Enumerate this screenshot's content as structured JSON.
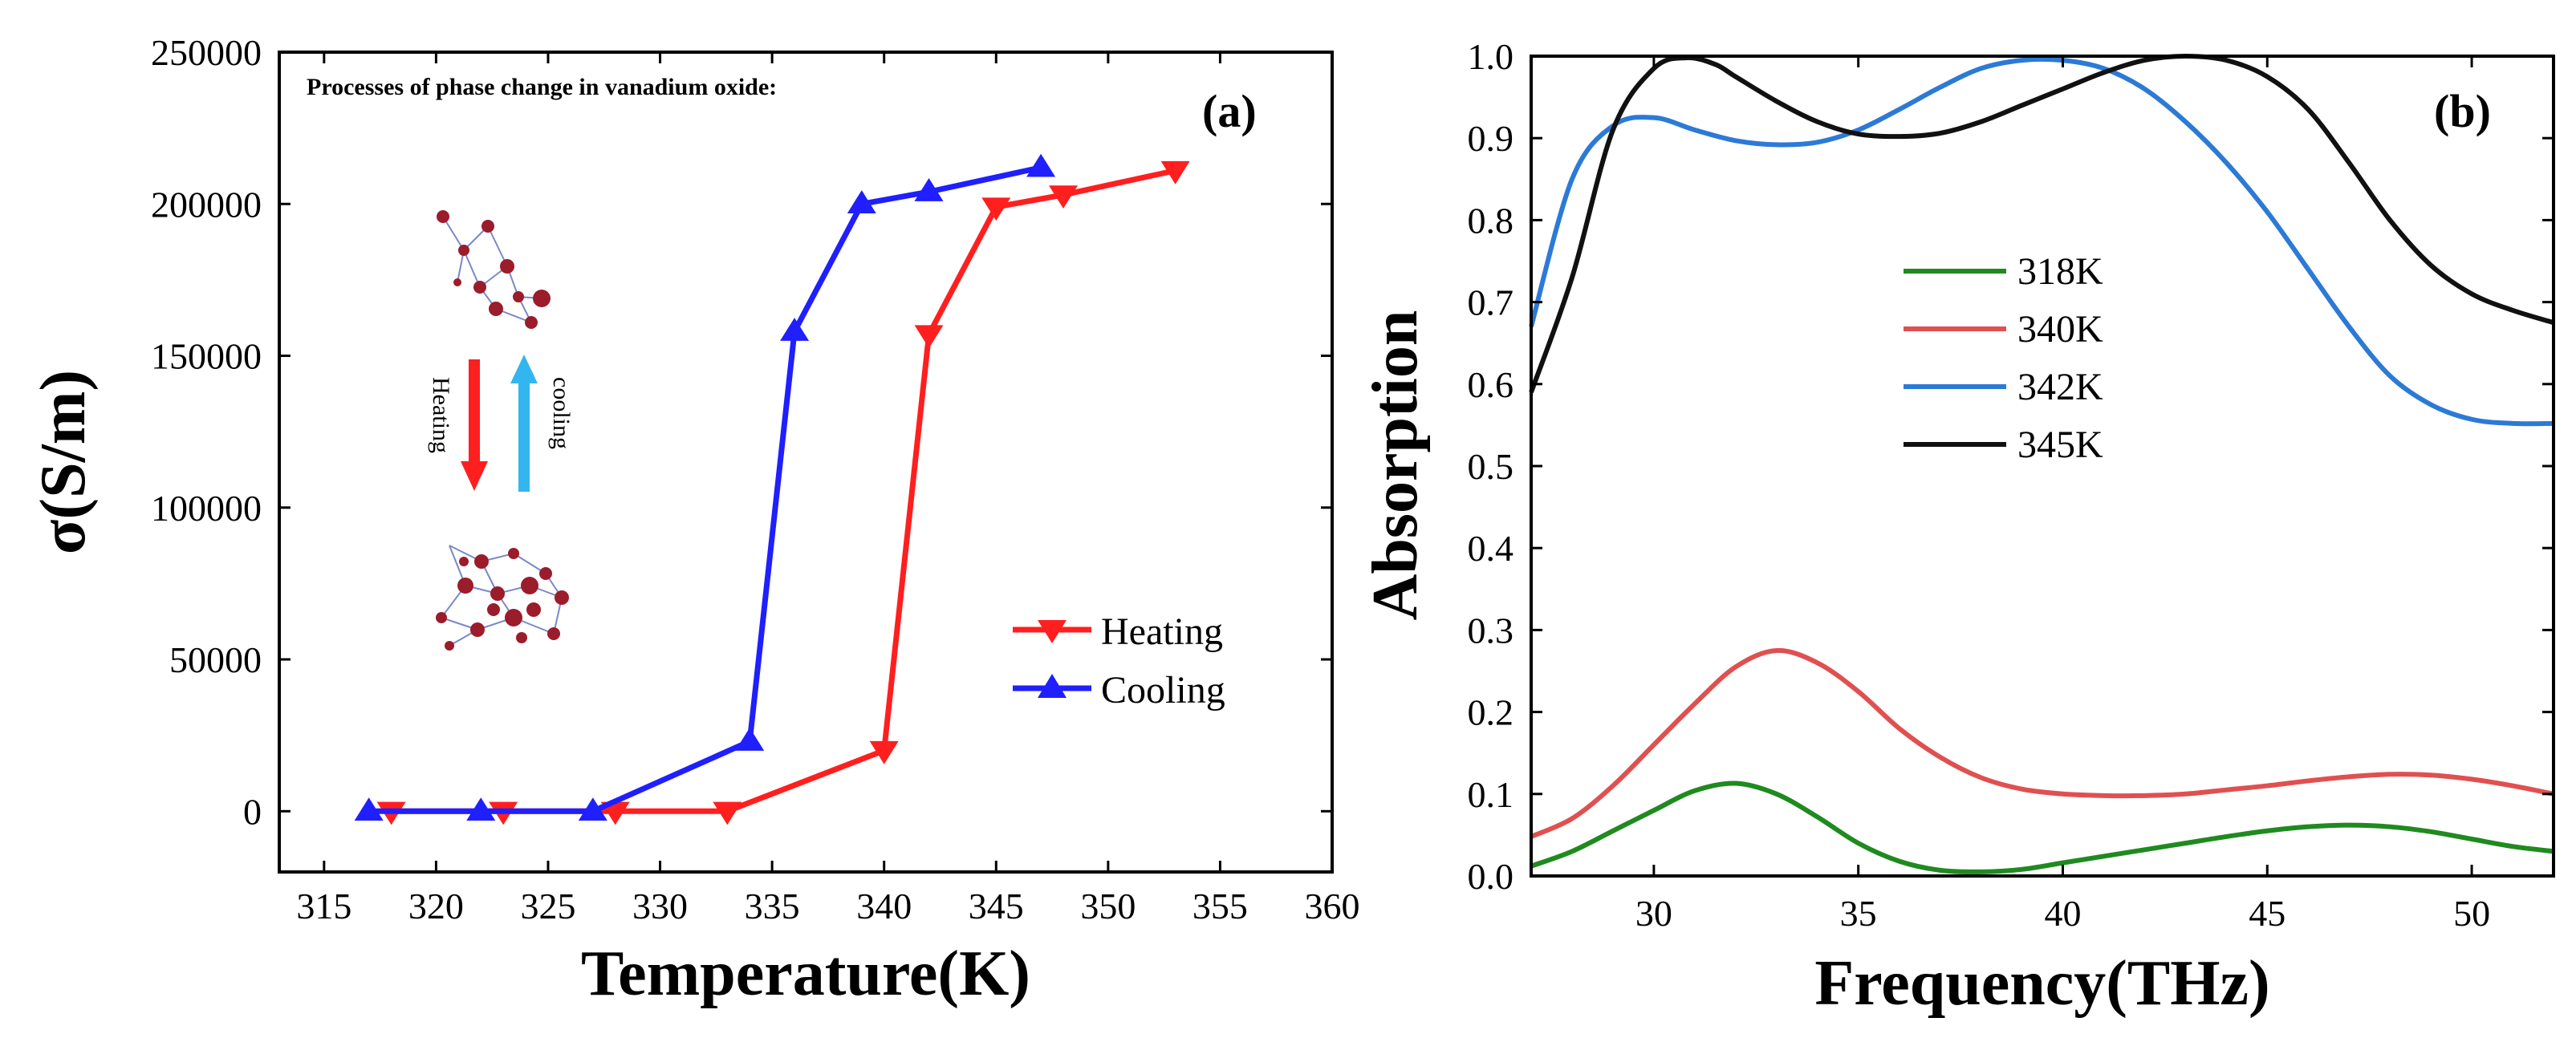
{
  "chart_data": [
    {
      "type": "line",
      "panel_tag": "(a)",
      "title": "Processes of phase change in vanadium oxide:",
      "xlabel": "Temperature(K)",
      "ylabel": "σ(S/m)",
      "xlim": [
        313,
        360
      ],
      "ylim": [
        -20000,
        250000
      ],
      "xticks": [
        "315",
        "320",
        "325",
        "330",
        "335",
        "340",
        "345",
        "350",
        "355",
        "360"
      ],
      "yticks": [
        "0",
        "50000",
        "100000",
        "150000",
        "200000",
        "250000"
      ],
      "inset": {
        "heating_label": "Heating",
        "cooling_label": "cooling"
      },
      "series": [
        {
          "name": "Heating",
          "color": "#ff1f1f",
          "marker": "triangle-down",
          "x": [
            318,
            323,
            328,
            333,
            340,
            342,
            345,
            348,
            353
          ],
          "y": [
            0,
            0,
            0,
            0,
            20000,
            157000,
            199000,
            203000,
            211000
          ]
        },
        {
          "name": "Cooling",
          "color": "#1f1fff",
          "marker": "triangle-up",
          "x": [
            317,
            322,
            327,
            334,
            336,
            339,
            342,
            347
          ],
          "y": [
            0,
            0,
            0,
            23000,
            158000,
            200000,
            204000,
            212000
          ]
        }
      ]
    },
    {
      "type": "line",
      "panel_tag": "(b)",
      "xlabel": "Frequency(THz)",
      "ylabel": "Absorption",
      "xlim": [
        27,
        52
      ],
      "ylim": [
        0,
        1.0
      ],
      "xticks": [
        "30",
        "35",
        "40",
        "45",
        "50"
      ],
      "yticks": [
        "0.0",
        "0.1",
        "0.2",
        "0.3",
        "0.4",
        "0.5",
        "0.6",
        "0.7",
        "0.8",
        "0.9",
        "1.0"
      ],
      "series": [
        {
          "name": "318K",
          "color": "#1f8a1f",
          "x": [
            27,
            28,
            29,
            30,
            31,
            32,
            33,
            34,
            35,
            36,
            37,
            38,
            39,
            40,
            41,
            42,
            43,
            44,
            45,
            46,
            47,
            48,
            49,
            50,
            51,
            52
          ],
          "y": [
            0.012,
            0.03,
            0.055,
            0.08,
            0.104,
            0.113,
            0.1,
            0.072,
            0.04,
            0.018,
            0.007,
            0.005,
            0.008,
            0.016,
            0.024,
            0.032,
            0.04,
            0.048,
            0.055,
            0.06,
            0.062,
            0.06,
            0.054,
            0.045,
            0.036,
            0.03
          ]
        },
        {
          "name": "340K",
          "color": "#e05050",
          "x": [
            27,
            28,
            29,
            30,
            31,
            32,
            33,
            34,
            35,
            36,
            37,
            38,
            39,
            40,
            41,
            42,
            43,
            44,
            45,
            46,
            47,
            48,
            49,
            50,
            51,
            52
          ],
          "y": [
            0.048,
            0.07,
            0.11,
            0.16,
            0.21,
            0.255,
            0.275,
            0.26,
            0.225,
            0.18,
            0.145,
            0.12,
            0.106,
            0.1,
            0.098,
            0.098,
            0.1,
            0.105,
            0.11,
            0.116,
            0.121,
            0.124,
            0.123,
            0.118,
            0.11,
            0.1
          ]
        },
        {
          "name": "342K",
          "color": "#2c7ad6",
          "x": [
            27,
            28,
            29,
            30,
            31,
            32,
            33,
            34,
            35,
            36,
            37,
            38,
            39,
            40,
            41,
            42,
            43,
            44,
            45,
            46,
            47,
            48,
            49,
            50,
            51,
            52
          ],
          "y": [
            0.67,
            0.85,
            0.915,
            0.925,
            0.91,
            0.897,
            0.892,
            0.895,
            0.91,
            0.935,
            0.962,
            0.985,
            0.995,
            0.995,
            0.985,
            0.96,
            0.92,
            0.87,
            0.81,
            0.74,
            0.67,
            0.61,
            0.575,
            0.557,
            0.552,
            0.552
          ]
        },
        {
          "name": "345K",
          "color": "#111111",
          "x": [
            27,
            28,
            29,
            30,
            30.8,
            31.5,
            32,
            33,
            34,
            35,
            36,
            37,
            38,
            39,
            40,
            41,
            42,
            43,
            44,
            45,
            46,
            47,
            48,
            49,
            50,
            51,
            52
          ],
          "y": [
            0.59,
            0.73,
            0.91,
            0.985,
            0.998,
            0.99,
            0.975,
            0.945,
            0.92,
            0.905,
            0.902,
            0.906,
            0.92,
            0.94,
            0.96,
            0.98,
            0.995,
            1.0,
            0.995,
            0.975,
            0.935,
            0.87,
            0.8,
            0.745,
            0.71,
            0.69,
            0.675
          ]
        }
      ]
    }
  ]
}
